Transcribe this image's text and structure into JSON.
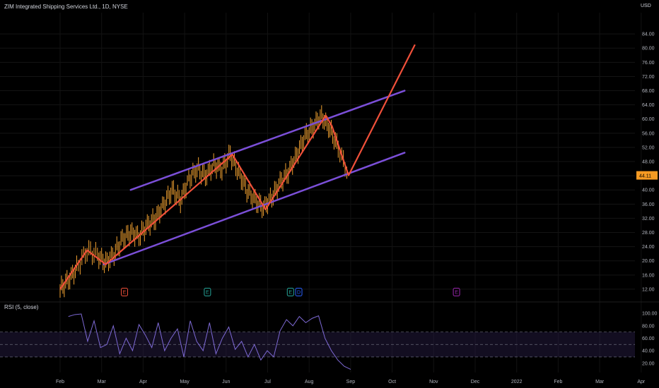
{
  "title": "ZIM Integrated Shipping Services Ltd., 1D, NYSE",
  "currency": "USD",
  "rsi_label": "RSI (5, close)",
  "colors": {
    "background": "#000000",
    "candle": "#f0a030",
    "zigzag": "#f0503a",
    "channel": "#7b4fd8",
    "rsi_line": "#7e6ad6",
    "rsi_band": "#2a1f4a",
    "price_label_bg": "#f59a23",
    "earnings": "#f0503a",
    "dividend": "#26a69a",
    "split": "#2962ff",
    "future_earnings": "#9c27b0"
  },
  "chart_data": [
    {
      "type": "line",
      "name": "price",
      "x_labels": [
        "Feb",
        "Mar",
        "Apr",
        "May",
        "Jun",
        "Jul",
        "Aug",
        "Sep",
        "Oct",
        "Nov",
        "Dec",
        "2022",
        "Feb",
        "Mar",
        "Apr"
      ],
      "y_ticks": [
        12,
        16,
        20,
        24,
        28,
        32,
        36,
        40,
        44,
        48,
        52,
        56,
        60,
        64,
        68,
        72,
        76,
        80,
        84
      ],
      "ylim": [
        9,
        90
      ],
      "last_price": "44.11",
      "candles": [
        {
          "x": 0.0,
          "c": 12.0
        },
        {
          "x": 0.2,
          "c": 14.5
        },
        {
          "x": 0.4,
          "c": 18.0
        },
        {
          "x": 0.65,
          "c": 23.0
        },
        {
          "x": 0.9,
          "c": 21.5
        },
        {
          "x": 1.1,
          "c": 19.5
        },
        {
          "x": 1.3,
          "c": 22.0
        },
        {
          "x": 1.5,
          "c": 26.0
        },
        {
          "x": 1.7,
          "c": 28.0
        },
        {
          "x": 1.9,
          "c": 27.0
        },
        {
          "x": 2.1,
          "c": 30.0
        },
        {
          "x": 2.3,
          "c": 32.0
        },
        {
          "x": 2.5,
          "c": 36.0
        },
        {
          "x": 2.7,
          "c": 40.0
        },
        {
          "x": 2.9,
          "c": 37.0
        },
        {
          "x": 3.1,
          "c": 43.0
        },
        {
          "x": 3.3,
          "c": 46.0
        },
        {
          "x": 3.5,
          "c": 44.0
        },
        {
          "x": 3.7,
          "c": 47.0
        },
        {
          "x": 3.9,
          "c": 46.0
        },
        {
          "x": 4.1,
          "c": 50.0
        },
        {
          "x": 4.3,
          "c": 45.0
        },
        {
          "x": 4.5,
          "c": 40.0
        },
        {
          "x": 4.7,
          "c": 37.0
        },
        {
          "x": 4.9,
          "c": 35.0
        },
        {
          "x": 5.1,
          "c": 38.0
        },
        {
          "x": 5.3,
          "c": 42.0
        },
        {
          "x": 5.5,
          "c": 45.0
        },
        {
          "x": 5.7,
          "c": 50.0
        },
        {
          "x": 5.9,
          "c": 55.0
        },
        {
          "x": 6.1,
          "c": 58.0
        },
        {
          "x": 6.3,
          "c": 61.0
        },
        {
          "x": 6.5,
          "c": 57.0
        },
        {
          "x": 6.7,
          "c": 52.0
        },
        {
          "x": 6.95,
          "c": 44.11
        }
      ],
      "zigzag": [
        {
          "x": 0.0,
          "y": 12.0
        },
        {
          "x": 0.65,
          "y": 23.0
        },
        {
          "x": 1.1,
          "y": 19.0
        },
        {
          "x": 4.15,
          "y": 50.0
        },
        {
          "x": 4.95,
          "y": 34.5
        },
        {
          "x": 6.4,
          "y": 61.0
        },
        {
          "x": 6.55,
          "y": 58.0
        },
        {
          "x": 6.95,
          "y": 44.11
        },
        {
          "x": 8.55,
          "y": 81.0
        }
      ],
      "channel": [
        {
          "from": {
            "x": 1.7,
            "y": 40.0
          },
          "to": {
            "x": 8.3,
            "y": 68.0
          }
        },
        {
          "from": {
            "x": 1.05,
            "y": 19.0
          },
          "to": {
            "x": 8.3,
            "y": 50.5
          }
        }
      ],
      "events": [
        {
          "x": 1.55,
          "label": "E",
          "kind": "earnings"
        },
        {
          "x": 3.55,
          "label": "E",
          "kind": "dividend"
        },
        {
          "x": 5.55,
          "label": "E",
          "kind": "dividend"
        },
        {
          "x": 5.75,
          "label": "D",
          "kind": "split"
        },
        {
          "x": 9.55,
          "label": "E",
          "kind": "future_earnings"
        }
      ]
    },
    {
      "type": "line",
      "name": "RSI",
      "y_ticks": [
        20,
        40,
        60,
        80,
        100
      ],
      "ylim": [
        5,
        107
      ],
      "bands": [
        30,
        50,
        70
      ],
      "values": [
        95,
        98,
        99,
        55,
        88,
        45,
        50,
        80,
        35,
        60,
        40,
        82,
        65,
        45,
        85,
        40,
        60,
        75,
        30,
        88,
        55,
        40,
        85,
        35,
        60,
        78,
        42,
        55,
        30,
        50,
        25,
        40,
        30,
        72,
        90,
        80,
        95,
        85,
        92,
        96,
        60,
        40,
        25,
        15,
        10
      ]
    }
  ]
}
